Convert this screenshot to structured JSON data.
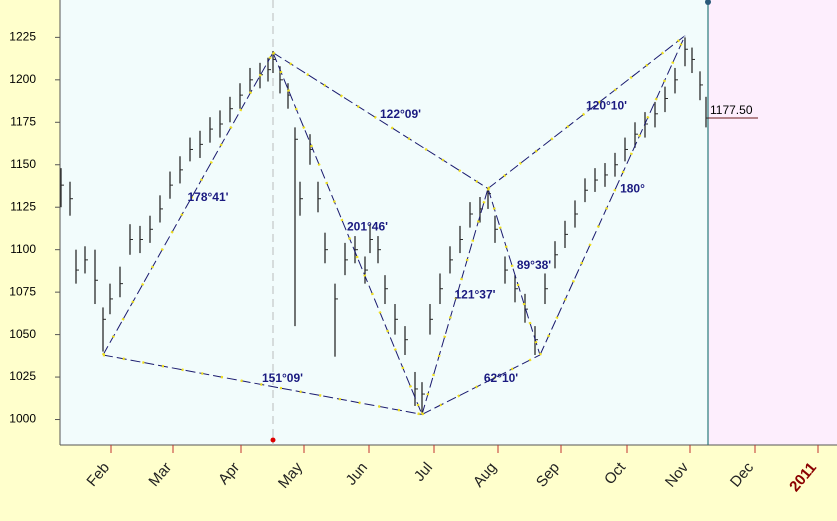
{
  "chart_data": {
    "type": "ohlc",
    "color": "#2a2a2a",
    "xlim": [
      0,
      777
    ],
    "ylim": [
      985,
      1247
    ],
    "yticks": [
      1000,
      1025,
      1050,
      1075,
      1100,
      1125,
      1150,
      1175,
      1200,
      1225
    ],
    "xticks": [
      {
        "value": 35,
        "label": "Feb"
      },
      {
        "value": 97,
        "label": "Mar"
      },
      {
        "value": 165,
        "label": "Apr"
      },
      {
        "value": 228,
        "label": "May"
      },
      {
        "value": 293,
        "label": "Jun"
      },
      {
        "value": 358,
        "label": "Jul"
      },
      {
        "value": 422,
        "label": "Aug"
      },
      {
        "value": 485,
        "label": "Sep"
      },
      {
        "value": 551,
        "label": "Oct"
      },
      {
        "value": 614,
        "label": "Nov"
      },
      {
        "value": 679,
        "label": "Dec"
      },
      {
        "value": 742,
        "label": "2011"
      }
    ],
    "x": [
      1,
      10,
      16,
      25,
      35,
      43,
      50,
      60,
      70,
      80,
      90,
      100,
      110,
      120,
      130,
      140,
      150,
      160,
      170,
      180,
      190,
      200,
      208,
      213,
      220,
      228,
      235,
      240,
      250,
      258,
      265,
      275,
      285,
      295,
      305,
      310,
      318,
      325,
      335,
      345,
      355,
      362,
      370,
      380,
      390,
      400,
      410,
      420,
      428,
      435,
      445,
      455,
      465,
      475,
      485,
      495,
      505,
      515,
      525,
      535,
      545,
      555,
      565,
      575,
      585,
      595,
      605,
      615,
      625,
      632,
      640,
      646
    ],
    "high": [
      1148,
      1140,
      1100,
      1102,
      1100,
      1066,
      1080,
      1090,
      1115,
      1114,
      1120,
      1132,
      1146,
      1155,
      1166,
      1170,
      1178,
      1182,
      1190,
      1198,
      1207,
      1210,
      1213,
      1217,
      1208,
      1198,
      1172,
      1140,
      1168,
      1140,
      1110,
      1080,
      1104,
      1108,
      1096,
      1115,
      1108,
      1085,
      1068,
      1055,
      1028,
      1022,
      1068,
      1086,
      1102,
      1114,
      1128,
      1131,
      1136,
      1120,
      1096,
      1085,
      1074,
      1055,
      1086,
      1105,
      1117,
      1129,
      1142,
      1148,
      1151,
      1157,
      1166,
      1175,
      1181,
      1187,
      1196,
      1207,
      1225,
      1219,
      1205,
      1190
    ],
    "low": [
      1125,
      1120,
      1080,
      1086,
      1068,
      1040,
      1062,
      1072,
      1097,
      1098,
      1104,
      1116,
      1130,
      1139,
      1152,
      1154,
      1163,
      1166,
      1175,
      1183,
      1192,
      1195,
      1199,
      1204,
      1192,
      1183,
      1055,
      1120,
      1150,
      1122,
      1092,
      1037,
      1085,
      1092,
      1080,
      1098,
      1092,
      1068,
      1050,
      1038,
      1008,
      1003,
      1050,
      1068,
      1086,
      1098,
      1113,
      1116,
      1124,
      1104,
      1080,
      1069,
      1057,
      1038,
      1068,
      1089,
      1101,
      1113,
      1128,
      1134,
      1137,
      1143,
      1152,
      1160,
      1166,
      1172,
      1181,
      1192,
      1208,
      1204,
      1188,
      1172
    ],
    "close": [
      1138,
      1130,
      1088,
      1094,
      1082,
      1059,
      1071,
      1080,
      1106,
      1106,
      1112,
      1124,
      1138,
      1147,
      1159,
      1162,
      1171,
      1174,
      1183,
      1191,
      1200,
      1203,
      1206,
      1212,
      1200,
      1191,
      1165,
      1130,
      1159,
      1130,
      1100,
      1071,
      1094,
      1100,
      1088,
      1106,
      1100,
      1077,
      1059,
      1047,
      1018,
      1015,
      1059,
      1077,
      1094,
      1106,
      1121,
      1124,
      1133,
      1112,
      1088,
      1077,
      1065,
      1047,
      1077,
      1097,
      1109,
      1121,
      1135,
      1141,
      1144,
      1150,
      1159,
      1168,
      1174,
      1180,
      1189,
      1200,
      1218,
      1212,
      1197,
      1177.5
    ],
    "segments": [
      {
        "label": "178°41'",
        "x": [
          43,
          213
        ],
        "y": [
          1038,
          1216
        ]
      },
      {
        "label": "151°09'",
        "x": [
          43,
          362
        ],
        "y": [
          1038,
          1003
        ]
      },
      {
        "label": "201°46'",
        "x": [
          213,
          362
        ],
        "y": [
          1216,
          1003
        ]
      },
      {
        "label": "122°09'",
        "x": [
          213,
          428
        ],
        "y": [
          1216,
          1136
        ]
      },
      {
        "label": "121°37'",
        "x": [
          362,
          428
        ],
        "y": [
          1003,
          1136
        ]
      },
      {
        "label": "62°10'",
        "x": [
          362,
          480
        ],
        "y": [
          1003,
          1038
        ]
      },
      {
        "label": "89°38'",
        "x": [
          428,
          480
        ],
        "y": [
          1136,
          1038
        ]
      },
      {
        "label": "120°10'",
        "x": [
          428,
          625
        ],
        "y": [
          1136,
          1226
        ]
      },
      {
        "label": "180°",
        "x": [
          480,
          625
        ],
        "y": [
          1038,
          1226
        ]
      }
    ],
    "last_price": {
      "value": 1177.5,
      "label": "1177.50"
    }
  }
}
